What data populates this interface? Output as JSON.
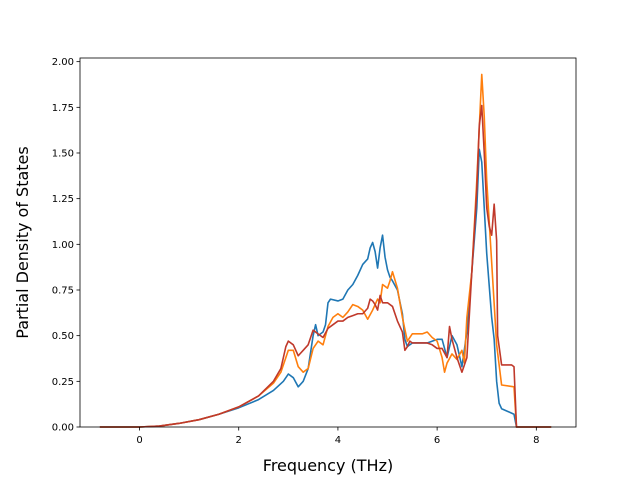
{
  "chart_data": {
    "type": "line",
    "title": "",
    "xlabel": "Frequency (THz)",
    "ylabel": "Partial Density of States",
    "xlim": [
      -1.2,
      8.8
    ],
    "ylim": [
      0.0,
      2.02
    ],
    "xticks": [
      0,
      2,
      4,
      6,
      8
    ],
    "xtick_labels": [
      "0",
      "2",
      "4",
      "6",
      "8"
    ],
    "yticks": [
      0.0,
      0.25,
      0.5,
      0.75,
      1.0,
      1.25,
      1.5,
      1.75,
      2.0
    ],
    "ytick_labels": [
      "0.00",
      "0.25",
      "0.50",
      "0.75",
      "1.00",
      "1.25",
      "1.50",
      "1.75",
      "2.00"
    ],
    "grid": false,
    "legend": false,
    "series": [
      {
        "color": "#1f77b4",
        "points": [
          [
            -0.8,
            0.0
          ],
          [
            0.0,
            0.0
          ],
          [
            0.4,
            0.005
          ],
          [
            0.8,
            0.02
          ],
          [
            1.2,
            0.04
          ],
          [
            1.6,
            0.07
          ],
          [
            2.0,
            0.105
          ],
          [
            2.4,
            0.15
          ],
          [
            2.7,
            0.2
          ],
          [
            2.9,
            0.25
          ],
          [
            3.0,
            0.29
          ],
          [
            3.1,
            0.27
          ],
          [
            3.2,
            0.22
          ],
          [
            3.3,
            0.25
          ],
          [
            3.4,
            0.32
          ],
          [
            3.5,
            0.5
          ],
          [
            3.55,
            0.56
          ],
          [
            3.6,
            0.5
          ],
          [
            3.7,
            0.52
          ],
          [
            3.75,
            0.56
          ],
          [
            3.8,
            0.68
          ],
          [
            3.85,
            0.7
          ],
          [
            4.0,
            0.69
          ],
          [
            4.1,
            0.7
          ],
          [
            4.2,
            0.75
          ],
          [
            4.3,
            0.78
          ],
          [
            4.4,
            0.83
          ],
          [
            4.5,
            0.89
          ],
          [
            4.6,
            0.92
          ],
          [
            4.65,
            0.98
          ],
          [
            4.7,
            1.01
          ],
          [
            4.75,
            0.96
          ],
          [
            4.8,
            0.87
          ],
          [
            4.85,
            0.98
          ],
          [
            4.9,
            1.05
          ],
          [
            4.95,
            0.93
          ],
          [
            5.0,
            0.86
          ],
          [
            5.05,
            0.82
          ],
          [
            5.1,
            0.8
          ],
          [
            5.2,
            0.75
          ],
          [
            5.3,
            0.62
          ],
          [
            5.35,
            0.48
          ],
          [
            5.4,
            0.44
          ],
          [
            5.5,
            0.46
          ],
          [
            5.8,
            0.46
          ],
          [
            6.0,
            0.48
          ],
          [
            6.1,
            0.48
          ],
          [
            6.2,
            0.38
          ],
          [
            6.3,
            0.5
          ],
          [
            6.4,
            0.45
          ],
          [
            6.5,
            0.33
          ],
          [
            6.6,
            0.52
          ],
          [
            6.7,
            0.85
          ],
          [
            6.8,
            1.2
          ],
          [
            6.85,
            1.52
          ],
          [
            6.9,
            1.45
          ],
          [
            7.0,
            0.95
          ],
          [
            7.1,
            0.6
          ],
          [
            7.15,
            0.48
          ],
          [
            7.2,
            0.25
          ],
          [
            7.25,
            0.13
          ],
          [
            7.3,
            0.1
          ],
          [
            7.55,
            0.07
          ],
          [
            7.6,
            0.0
          ],
          [
            8.3,
            0.0
          ]
        ]
      },
      {
        "color": "#ff7f0e",
        "points": [
          [
            -0.8,
            0.0
          ],
          [
            0.0,
            0.0
          ],
          [
            0.4,
            0.005
          ],
          [
            0.8,
            0.02
          ],
          [
            1.2,
            0.04
          ],
          [
            1.6,
            0.07
          ],
          [
            2.0,
            0.11
          ],
          [
            2.4,
            0.17
          ],
          [
            2.7,
            0.24
          ],
          [
            2.85,
            0.3
          ],
          [
            2.95,
            0.38
          ],
          [
            3.0,
            0.42
          ],
          [
            3.1,
            0.42
          ],
          [
            3.2,
            0.33
          ],
          [
            3.3,
            0.3
          ],
          [
            3.4,
            0.32
          ],
          [
            3.5,
            0.43
          ],
          [
            3.6,
            0.47
          ],
          [
            3.7,
            0.45
          ],
          [
            3.8,
            0.55
          ],
          [
            3.9,
            0.6
          ],
          [
            4.0,
            0.62
          ],
          [
            4.1,
            0.6
          ],
          [
            4.2,
            0.63
          ],
          [
            4.3,
            0.67
          ],
          [
            4.4,
            0.66
          ],
          [
            4.5,
            0.64
          ],
          [
            4.6,
            0.59
          ],
          [
            4.7,
            0.64
          ],
          [
            4.8,
            0.7
          ],
          [
            4.85,
            0.68
          ],
          [
            4.9,
            0.78
          ],
          [
            5.0,
            0.76
          ],
          [
            5.05,
            0.8
          ],
          [
            5.1,
            0.85
          ],
          [
            5.2,
            0.76
          ],
          [
            5.3,
            0.6
          ],
          [
            5.4,
            0.47
          ],
          [
            5.5,
            0.51
          ],
          [
            5.7,
            0.51
          ],
          [
            5.8,
            0.52
          ],
          [
            5.9,
            0.49
          ],
          [
            6.0,
            0.47
          ],
          [
            6.1,
            0.38
          ],
          [
            6.15,
            0.3
          ],
          [
            6.2,
            0.35
          ],
          [
            6.3,
            0.4
          ],
          [
            6.4,
            0.37
          ],
          [
            6.5,
            0.42
          ],
          [
            6.55,
            0.35
          ],
          [
            6.6,
            0.6
          ],
          [
            6.7,
            0.85
          ],
          [
            6.8,
            1.35
          ],
          [
            6.9,
            1.93
          ],
          [
            6.95,
            1.7
          ],
          [
            7.0,
            1.35
          ],
          [
            7.1,
            0.9
          ],
          [
            7.2,
            0.45
          ],
          [
            7.3,
            0.23
          ],
          [
            7.55,
            0.22
          ],
          [
            7.6,
            0.0
          ],
          [
            8.3,
            0.0
          ]
        ]
      },
      {
        "color": "#c0392b",
        "points": [
          [
            -0.8,
            0.0
          ],
          [
            0.0,
            0.0
          ],
          [
            0.4,
            0.005
          ],
          [
            0.8,
            0.02
          ],
          [
            1.2,
            0.04
          ],
          [
            1.6,
            0.07
          ],
          [
            2.0,
            0.11
          ],
          [
            2.4,
            0.17
          ],
          [
            2.7,
            0.25
          ],
          [
            2.85,
            0.32
          ],
          [
            2.95,
            0.44
          ],
          [
            3.0,
            0.47
          ],
          [
            3.1,
            0.45
          ],
          [
            3.2,
            0.39
          ],
          [
            3.3,
            0.42
          ],
          [
            3.4,
            0.45
          ],
          [
            3.5,
            0.53
          ],
          [
            3.6,
            0.51
          ],
          [
            3.7,
            0.49
          ],
          [
            3.8,
            0.54
          ],
          [
            3.9,
            0.56
          ],
          [
            4.0,
            0.58
          ],
          [
            4.1,
            0.58
          ],
          [
            4.2,
            0.6
          ],
          [
            4.3,
            0.61
          ],
          [
            4.4,
            0.62
          ],
          [
            4.5,
            0.62
          ],
          [
            4.6,
            0.65
          ],
          [
            4.65,
            0.7
          ],
          [
            4.7,
            0.69
          ],
          [
            4.75,
            0.67
          ],
          [
            4.8,
            0.64
          ],
          [
            4.85,
            0.72
          ],
          [
            4.9,
            0.68
          ],
          [
            5.0,
            0.68
          ],
          [
            5.1,
            0.66
          ],
          [
            5.2,
            0.58
          ],
          [
            5.3,
            0.52
          ],
          [
            5.35,
            0.42
          ],
          [
            5.4,
            0.44
          ],
          [
            5.45,
            0.47
          ],
          [
            5.5,
            0.46
          ],
          [
            5.8,
            0.46
          ],
          [
            5.9,
            0.45
          ],
          [
            6.0,
            0.43
          ],
          [
            6.1,
            0.43
          ],
          [
            6.2,
            0.38
          ],
          [
            6.25,
            0.55
          ],
          [
            6.3,
            0.48
          ],
          [
            6.4,
            0.38
          ],
          [
            6.5,
            0.3
          ],
          [
            6.6,
            0.38
          ],
          [
            6.7,
            0.85
          ],
          [
            6.8,
            1.3
          ],
          [
            6.85,
            1.65
          ],
          [
            6.9,
            1.76
          ],
          [
            6.95,
            1.5
          ],
          [
            7.0,
            1.2
          ],
          [
            7.05,
            1.1
          ],
          [
            7.1,
            1.05
          ],
          [
            7.15,
            1.22
          ],
          [
            7.2,
            1.02
          ],
          [
            7.22,
            0.5
          ],
          [
            7.3,
            0.34
          ],
          [
            7.5,
            0.34
          ],
          [
            7.55,
            0.33
          ],
          [
            7.6,
            0.0
          ],
          [
            8.3,
            0.0
          ]
        ]
      }
    ]
  }
}
